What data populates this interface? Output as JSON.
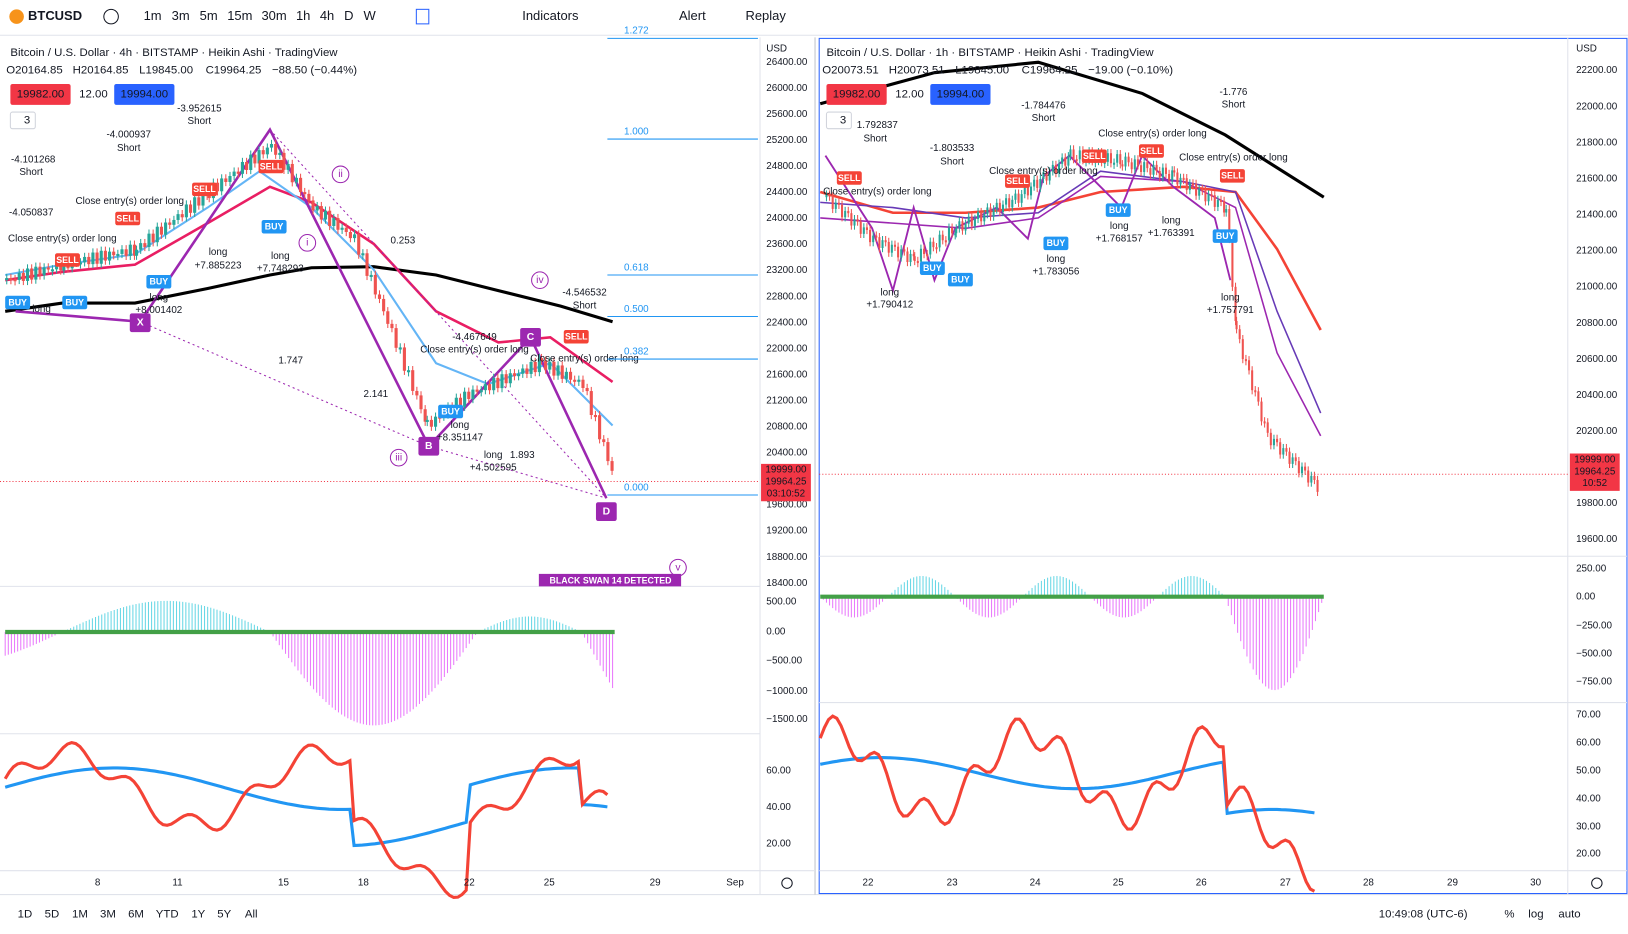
{
  "toolbar": {
    "symbol": "BTCUSD",
    "intervals": [
      "1m",
      "3m",
      "5m",
      "15m",
      "30m",
      "1h",
      "4h",
      "D",
      "W"
    ],
    "indicators": "Indicators",
    "alert": "Alert",
    "replay": "Replay"
  },
  "panes": [
    {
      "title": "Bitcoin / U.S. Dollar · 4h · BITSTAMP · Heikin Ashi · TradingView",
      "open": "O20164.85",
      "high": "H20164.85",
      "low": "L19845.00",
      "close": "C19964.25",
      "change": "−88.50 (−0.44%)",
      "bid": "19982.00",
      "spread": "12.00",
      "ask": "19994.00",
      "layouts": "3",
      "currency": "USD",
      "price_ticks": [
        {
          "value": 26400,
          "label": "26400.00"
        },
        {
          "value": 26000,
          "label": "26000.00"
        },
        {
          "value": 25600,
          "label": "25600.00"
        },
        {
          "value": 25200,
          "label": "25200.00"
        },
        {
          "value": 24800,
          "label": "24800.00"
        },
        {
          "value": 24400,
          "label": "24400.00"
        },
        {
          "value": 24000,
          "label": "24000.00"
        },
        {
          "value": 23600,
          "label": "23600.00"
        },
        {
          "value": 23200,
          "label": "23200.00"
        },
        {
          "value": 22800,
          "label": "22800.00"
        },
        {
          "value": 22400,
          "label": "22400.00"
        },
        {
          "value": 22000,
          "label": "22000.00"
        },
        {
          "value": 21600,
          "label": "21600.00"
        },
        {
          "value": 21200,
          "label": "21200.00"
        },
        {
          "value": 20800,
          "label": "20800.00"
        },
        {
          "value": 20400,
          "label": "20400.00"
        },
        {
          "value": 19600,
          "label": "19600.00"
        },
        {
          "value": 19200,
          "label": "19200.00"
        },
        {
          "value": 18800,
          "label": "18800.00"
        },
        {
          "value": 18400,
          "label": "18400.00"
        }
      ],
      "last_prices": [
        "19999.00",
        "19964.25",
        "03:10:52"
      ],
      "macd_ticks": [
        "500.00",
        "0.00",
        "−500.00",
        "−1000.00",
        "−1500.00"
      ],
      "rsi_ticks": [
        "60.00",
        "40.00",
        "20.00"
      ],
      "dates": [
        "8",
        "11",
        "15",
        "18",
        "22",
        "25",
        "29",
        "Sep"
      ],
      "fib": [
        "1.272",
        "1.000",
        "0.618",
        "0.500",
        "0.382",
        "0.000"
      ],
      "annotations": [
        "-4.101268",
        "Short",
        "-4.050837",
        "Close entry(s) order long",
        "long",
        "-4.000937",
        "Short",
        "Close entry(s) order long",
        "-3.952615",
        "Short",
        "long",
        "+7.885223",
        "long",
        "+7.748293",
        "long",
        "+8.001402",
        "-4.546532",
        "Short",
        "-4.467649",
        "Close entry(s) order long",
        "long",
        "+8.351147",
        "long",
        "+4.502595",
        "Close entry(s) order long",
        "0.253",
        "1.747",
        "2.141",
        "1.893"
      ],
      "signals": [
        "BUY",
        "BUY",
        "BUY",
        "BUY",
        "BUY",
        "SELL",
        "SELL",
        "SELL",
        "SELL",
        "SELL"
      ],
      "waves": [
        "X",
        "B",
        "C",
        "D",
        "i",
        "ii",
        "iii",
        "iv",
        "v"
      ],
      "banner": "BLACK SWAN 14 DETECTED"
    },
    {
      "title": "Bitcoin / U.S. Dollar · 1h · BITSTAMP · Heikin Ashi · TradingView",
      "open": "O20073.51",
      "high": "H20073.51",
      "low": "L19845.00",
      "close": "C19964.25",
      "change": "−19.00 (−0.10%)",
      "bid": "19982.00",
      "spread": "12.00",
      "ask": "19994.00",
      "layouts": "3",
      "currency": "USD",
      "price_ticks": [
        {
          "value": 22200,
          "label": "22200.00"
        },
        {
          "value": 22000,
          "label": "22000.00"
        },
        {
          "value": 21800,
          "label": "21800.00"
        },
        {
          "value": 21600,
          "label": "21600.00"
        },
        {
          "value": 21400,
          "label": "21400.00"
        },
        {
          "value": 21200,
          "label": "21200.00"
        },
        {
          "value": 21000,
          "label": "21000.00"
        },
        {
          "value": 20800,
          "label": "20800.00"
        },
        {
          "value": 20600,
          "label": "20600.00"
        },
        {
          "value": 20400,
          "label": "20400.00"
        },
        {
          "value": 20200,
          "label": "20200.00"
        },
        {
          "value": 19800,
          "label": "19800.00"
        },
        {
          "value": 19600,
          "label": "19600.00"
        }
      ],
      "last_prices": [
        "19999.00",
        "19964.25",
        "10:52"
      ],
      "macd_ticks": [
        "250.00",
        "0.00",
        "−250.00",
        "−500.00",
        "−750.00"
      ],
      "rsi_ticks": [
        "70.00",
        "60.00",
        "50.00",
        "40.00",
        "30.00",
        "20.00"
      ],
      "dates": [
        "22",
        "23",
        "24",
        "25",
        "26",
        "27",
        "28",
        "29",
        "30"
      ],
      "annotations": [
        "1.792837",
        "Short",
        "-1.803533",
        "Short",
        "-1.784476",
        "Short",
        "-1.776",
        "Short",
        "Close entry(s) order long",
        "Close entry(s) order long",
        "Close entry(s) order long",
        "Close entry(s) order long",
        "long",
        "+1.790412",
        "long",
        "+1.768157",
        "long",
        "+1.763391",
        "long",
        "+1.757791",
        "long",
        "+1.783056"
      ],
      "signals": [
        "SELL",
        "SELL",
        "SELL",
        "SELL",
        "SELL",
        "BUY",
        "BUY",
        "BUY",
        "BUY",
        "BUY"
      ]
    }
  ],
  "bottom": {
    "ranges": [
      "1D",
      "5D",
      "1M",
      "3M",
      "6M",
      "YTD",
      "1Y",
      "5Y",
      "All"
    ],
    "clock": "10:49:08 (UTC-6)",
    "percent": "%",
    "log": "log",
    "auto": "auto"
  }
}
